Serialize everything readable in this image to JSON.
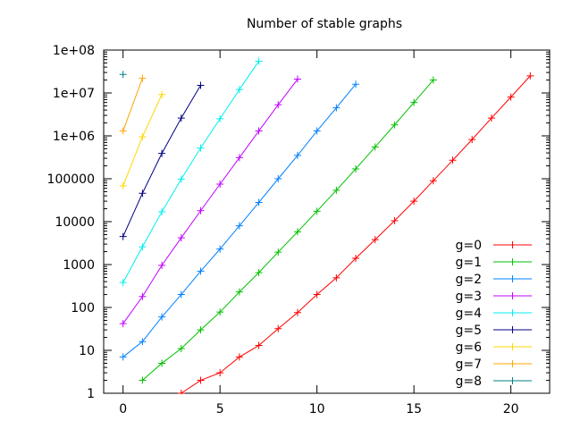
{
  "chart_data": {
    "type": "line",
    "title": "Number of stable graphs",
    "xlabel": "",
    "ylabel": "",
    "y_scale": "log",
    "xlim": [
      -1,
      22
    ],
    "ylim": [
      1,
      100000000
    ],
    "x_ticks": [
      0,
      5,
      10,
      15,
      20
    ],
    "x_tick_labels": [
      "0",
      "5",
      "10",
      "15",
      "20"
    ],
    "y_ticks": [
      1,
      10,
      100,
      1000,
      10000,
      100000,
      1000000,
      10000000,
      100000000
    ],
    "y_tick_labels": [
      "1",
      "10",
      "100",
      "1000",
      "10000",
      "100000",
      "1e+06",
      "1e+07",
      "1e+08"
    ],
    "grid": false,
    "legend_position": "bottom-right",
    "series": [
      {
        "name": "g=0",
        "color": "#ff0000",
        "x": [
          3,
          4,
          5,
          6,
          7,
          8,
          9,
          10,
          11,
          12,
          13,
          14,
          15,
          16,
          17,
          18,
          19,
          20,
          21
        ],
        "y": [
          1,
          2,
          3,
          7,
          13,
          32,
          76,
          200,
          490,
          1400,
          3800,
          10500,
          30000,
          90000,
          270000,
          820000,
          2600000,
          8000000,
          25000000
        ]
      },
      {
        "name": "g=1",
        "color": "#00c000",
        "x": [
          1,
          2,
          3,
          4,
          5,
          6,
          7,
          8,
          9,
          10,
          11,
          12,
          13,
          14,
          15,
          16
        ],
        "y": [
          2,
          5,
          11,
          30,
          78,
          230,
          650,
          1950,
          5800,
          17500,
          54000,
          170000,
          550000,
          1800000,
          6000000,
          20000000
        ]
      },
      {
        "name": "g=2",
        "color": "#0080ff",
        "x": [
          0,
          1,
          2,
          3,
          4,
          5,
          6,
          7,
          8,
          9,
          10,
          11,
          12
        ],
        "y": [
          7,
          16,
          60,
          200,
          700,
          2300,
          8000,
          28000,
          100000,
          350000,
          1300000,
          4500000,
          16000000
        ]
      },
      {
        "name": "g=3",
        "color": "#c000ff",
        "x": [
          0,
          1,
          2,
          3,
          4,
          5,
          6,
          7,
          8,
          9
        ],
        "y": [
          42,
          180,
          960,
          4200,
          18000,
          75000,
          310000,
          1300000,
          5300000,
          21000000
        ]
      },
      {
        "name": "g=4",
        "color": "#00eeee",
        "x": [
          0,
          1,
          2,
          3,
          4,
          5,
          6,
          7
        ],
        "y": [
          380,
          2600,
          17000,
          98000,
          520000,
          2500000,
          12000000,
          55000000
        ]
      },
      {
        "name": "g=5",
        "color": "#000080",
        "x": [
          0,
          1,
          2,
          3,
          4
        ],
        "y": [
          4500,
          46000,
          390000,
          2600000,
          15000000
        ]
      },
      {
        "name": "g=6",
        "color": "#ffd700",
        "x": [
          0,
          1,
          2
        ],
        "y": [
          68000,
          950000,
          9200000
        ]
      },
      {
        "name": "g=7",
        "color": "#ffa500",
        "x": [
          0,
          1
        ],
        "y": [
          1300000,
          22000000
        ]
      },
      {
        "name": "g=8",
        "color": "#008080",
        "x": [
          0
        ],
        "y": [
          27000000
        ]
      }
    ]
  }
}
